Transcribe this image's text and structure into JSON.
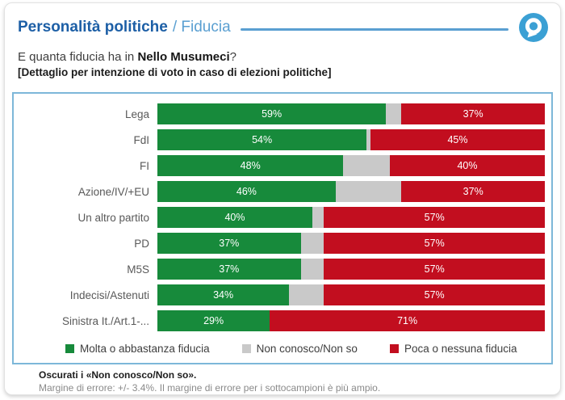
{
  "header": {
    "title_primary": "Personalità politiche",
    "title_secondary": "/ Fiducia",
    "logo": "quorum-youtrend-logo",
    "accent_dark_blue": "#1d5fa6",
    "accent_light_blue": "#5a9fd1"
  },
  "question": {
    "prefix": "E quanta fiducia ha in ",
    "subject": "Nello Musumeci",
    "suffix": "?",
    "detail": "[Dettaglio per intenzione di voto in caso di elezioni politiche]"
  },
  "chart_data": {
    "type": "bar",
    "stacked": true,
    "orientation": "horizontal",
    "categories": [
      "Lega",
      "FdI",
      "FI",
      "Azione/IV/+EU",
      "Un altro partito",
      "PD",
      "M5S",
      "Indecisi/Astenuti",
      "Sinistra It./Art.1-..."
    ],
    "series": [
      {
        "name": "Molta o abbastanza fiducia",
        "color": "#178a3b",
        "show_labels": true,
        "values": [
          59,
          54,
          48,
          46,
          40,
          37,
          37,
          34,
          29
        ]
      },
      {
        "name": "Non conosco/Non so",
        "color": "#c9c9c9",
        "show_labels": false,
        "values": [
          4,
          1,
          12,
          17,
          3,
          6,
          6,
          9,
          0
        ]
      },
      {
        "name": "Poca o nessuna fiducia",
        "color": "#c20e1f",
        "show_labels": true,
        "values": [
          37,
          45,
          40,
          37,
          57,
          57,
          57,
          57,
          71
        ]
      }
    ],
    "value_suffix": "%",
    "xlim": [
      0,
      100
    ],
    "grid": false,
    "legend_position": "bottom",
    "panel_border_color": "#7db7d9"
  },
  "footnote": {
    "line1": "Oscurati i «Non conosco/Non so».",
    "line2": "Margine di errore: +/- 3.4%. Il margine di errore per i sottocampioni è più ampio."
  }
}
